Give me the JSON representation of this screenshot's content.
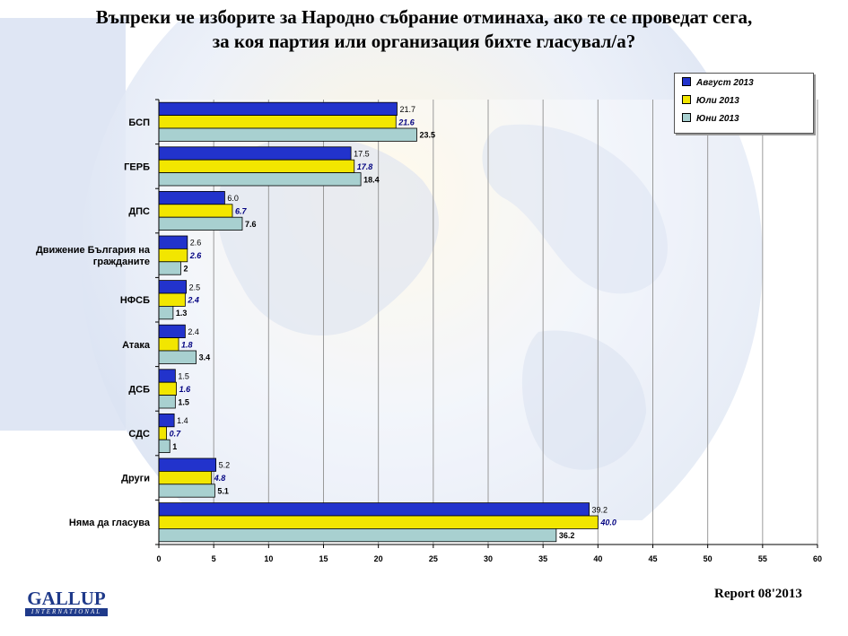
{
  "title_line1": "Въпреки че изборите за Народно събрание отминаха, ако те се проведат сега,",
  "title_line2": "за коя партия или организация бихте гласувал/а?",
  "footer": {
    "logo_text": "GALLUP",
    "logo_sub": "INTERNATIONAL",
    "report": "Report 08'2013"
  },
  "chart_data": {
    "type": "bar",
    "orientation": "horizontal",
    "title": "Въпреки че изборите за Народно събрание отминаха, ако те се проведат сега, за коя партия или организация бихте гласувал/а?",
    "categories": [
      "БСП",
      "ГЕРБ",
      "ДПС",
      "Движение България на гражданите",
      "НФСБ",
      "Атака",
      "ДСБ",
      "СДС",
      "Други",
      "Няма да гласува"
    ],
    "category_lines": [
      [
        "БСП"
      ],
      [
        "ГЕРБ"
      ],
      [
        "ДПС"
      ],
      [
        "Движение България на",
        "гражданите"
      ],
      [
        "НФСБ"
      ],
      [
        "Атака"
      ],
      [
        "ДСБ"
      ],
      [
        "СДС"
      ],
      [
        "Други"
      ],
      [
        "Няма да гласува"
      ]
    ],
    "series": [
      {
        "name": "Август 2013",
        "color": "#2233cc",
        "values": [
          21.7,
          17.5,
          6.0,
          2.6,
          2.5,
          2.4,
          1.5,
          1.4,
          5.2,
          39.2
        ],
        "labels": [
          "21.7",
          "17.5",
          "6.0",
          "2.6",
          "2.5",
          "2.4",
          "1.5",
          "1.4",
          "5.2",
          "39.2"
        ]
      },
      {
        "name": "Юли 2013",
        "color": "#f2e600",
        "values": [
          21.6,
          17.8,
          6.7,
          2.6,
          2.4,
          1.8,
          1.6,
          0.7,
          4.8,
          40.0
        ],
        "labels": [
          "21.6",
          "17.8",
          "6.7",
          "2.6",
          "2.4",
          "1.8",
          "1.6",
          "0.7",
          "4.8",
          "40.0"
        ]
      },
      {
        "name": "Юни 2013",
        "color": "#a8d0d0",
        "values": [
          23.5,
          18.4,
          7.6,
          2,
          1.3,
          3.4,
          1.5,
          1,
          5.1,
          36.2
        ],
        "labels": [
          "23.5",
          "18.4",
          "7.6",
          "2",
          "1.3",
          "3.4",
          "1.5",
          "1",
          "5.1",
          "36.2"
        ]
      }
    ],
    "xlim": [
      0,
      60
    ],
    "xticks": [
      0,
      5,
      10,
      15,
      20,
      25,
      30,
      35,
      40,
      45,
      50,
      55,
      60
    ],
    "grid": true,
    "legend_position": "top-right",
    "xlabel": "",
    "ylabel": ""
  }
}
